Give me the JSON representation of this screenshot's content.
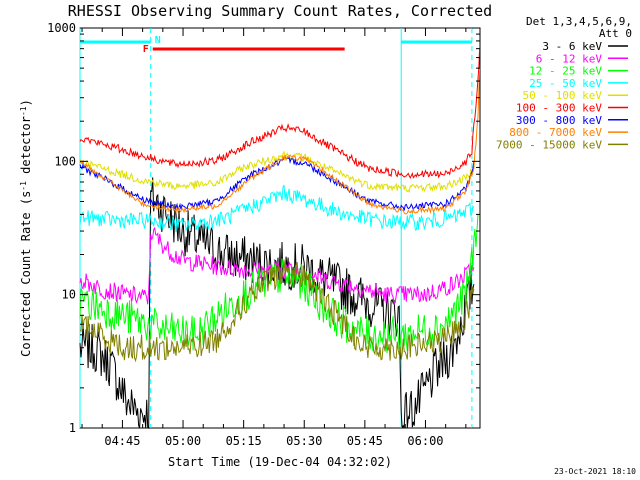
{
  "chart_data": {
    "type": "line",
    "title": "RHESSI Observing Summary Count Rates, Corrected",
    "xlabel": "Start Time (19-Dec-04 04:32:02)",
    "ylabel_main": "Corrected Count Rate (s",
    "ylabel_sup1": "-1",
    "ylabel_mid": " detector",
    "ylabel_sup2": "-1",
    "ylabel_end": ")",
    "y_scale": "log",
    "ylim": [
      1,
      1000
    ],
    "xlim_minutes": [
      4.5,
      103.5
    ],
    "y_ticks": [
      {
        "value": 1,
        "label": "1"
      },
      {
        "value": 10,
        "label": "10"
      },
      {
        "value": 100,
        "label": "100"
      },
      {
        "value": 1000,
        "label": "1000"
      }
    ],
    "x_ticks": [
      {
        "minute": 15,
        "label": "04:45"
      },
      {
        "minute": 30,
        "label": "05:00"
      },
      {
        "minute": 45,
        "label": "05:15"
      },
      {
        "minute": 60,
        "label": "05:30"
      },
      {
        "minute": 75,
        "label": "05:45"
      },
      {
        "minute": 90,
        "label": "06:00"
      }
    ],
    "legend": {
      "placement": "right",
      "header_line1": "Det 1,3,4,5,6,9,",
      "header_line2": "Att 0",
      "entries": [
        {
          "label": "3 - 6 keV",
          "color": "#000000"
        },
        {
          "label": "6 - 12 keV",
          "color": "#ff00ff"
        },
        {
          "label": "12 - 25 keV",
          "color": "#00ff00"
        },
        {
          "label": "25 - 50 keV",
          "color": "#00ffff"
        },
        {
          "label": "50 - 100 keV",
          "color": "#e0e000"
        },
        {
          "label": "100 - 300 keV",
          "color": "#ff0000"
        },
        {
          "label": "300 - 800 keV",
          "color": "#0000ff"
        },
        {
          "label": "800 - 7000 keV",
          "color": "#ff8000"
        },
        {
          "label": "7000 - 15000 keV",
          "color": "#808000"
        }
      ]
    },
    "annotations": {
      "flare_flag_label": "F",
      "flare_flag_color": "#ff0000",
      "flare_minutes": [
        22.5,
        70
      ],
      "night_flag_label": "N",
      "night_flag_color": "#00ffff",
      "night_intervals_minutes": [
        [
          4.5,
          22
        ],
        [
          84,
          101.5
        ]
      ],
      "day_boundaries_solid_minutes": [
        4.5,
        84
      ],
      "day_boundaries_dashed_minutes": [
        22,
        101.5
      ]
    },
    "series": [
      {
        "name": "3 - 6 keV",
        "color": "#000000",
        "noise": 0.18,
        "points": [
          [
            4.5,
            4
          ],
          [
            8,
            4
          ],
          [
            12,
            3
          ],
          [
            16,
            1.6
          ],
          [
            19,
            1.3
          ],
          [
            21.5,
            1.3
          ],
          [
            22,
            55
          ],
          [
            30,
            30
          ],
          [
            40,
            20
          ],
          [
            50,
            17
          ],
          [
            60,
            16
          ],
          [
            70,
            11
          ],
          [
            80,
            7.5
          ],
          [
            83.5,
            7
          ],
          [
            84,
            1.2
          ],
          [
            88,
            1.5
          ],
          [
            92,
            2.5
          ],
          [
            97,
            4
          ],
          [
            101,
            10
          ],
          [
            102,
            12
          ]
        ]
      },
      {
        "name": "6 - 12 keV",
        "color": "#ff00ff",
        "noise": 0.07,
        "points": [
          [
            4.5,
            13
          ],
          [
            10,
            11
          ],
          [
            16,
            10
          ],
          [
            21.5,
            9.5
          ],
          [
            22,
            30
          ],
          [
            26,
            22
          ],
          [
            30,
            18
          ],
          [
            40,
            16
          ],
          [
            50,
            15
          ],
          [
            55,
            15.5
          ],
          [
            60,
            15
          ],
          [
            65,
            13
          ],
          [
            70,
            12
          ],
          [
            80,
            10
          ],
          [
            84,
            10
          ],
          [
            90,
            10
          ],
          [
            97,
            12
          ],
          [
            100,
            14
          ],
          [
            102,
            16
          ]
        ]
      },
      {
        "name": "12 - 25 keV",
        "color": "#00ff00",
        "noise": 0.14,
        "points": [
          [
            4.5,
            9
          ],
          [
            15,
            7
          ],
          [
            25,
            5.5
          ],
          [
            33,
            5
          ],
          [
            40,
            7.5
          ],
          [
            45,
            10
          ],
          [
            50,
            12
          ],
          [
            55,
            14
          ],
          [
            60,
            12
          ],
          [
            65,
            8
          ],
          [
            70,
            6
          ],
          [
            75,
            5
          ],
          [
            85,
            5
          ],
          [
            95,
            6
          ],
          [
            100,
            10
          ],
          [
            102,
            22
          ],
          [
            103,
            40
          ]
        ]
      },
      {
        "name": "25 - 50 keV",
        "color": "#00ffff",
        "noise": 0.06,
        "points": [
          [
            4.5,
            38
          ],
          [
            15,
            36
          ],
          [
            22,
            36
          ],
          [
            30,
            33
          ],
          [
            40,
            37
          ],
          [
            48,
            47
          ],
          [
            55,
            58
          ],
          [
            60,
            52
          ],
          [
            70,
            40
          ],
          [
            80,
            35
          ],
          [
            90,
            35
          ],
          [
            97,
            38
          ],
          [
            100,
            42
          ],
          [
            102,
            45
          ]
        ]
      },
      {
        "name": "50 - 100 keV",
        "color": "#e0e000",
        "noise": 0.03,
        "points": [
          [
            4.5,
            100
          ],
          [
            12,
            85
          ],
          [
            20,
            72
          ],
          [
            28,
            65
          ],
          [
            38,
            68
          ],
          [
            45,
            90
          ],
          [
            55,
            112
          ],
          [
            60,
            107
          ],
          [
            68,
            82
          ],
          [
            76,
            66
          ],
          [
            85,
            63
          ],
          [
            95,
            65
          ],
          [
            100,
            75
          ],
          [
            102,
            90
          ]
        ]
      },
      {
        "name": "100 - 300 keV",
        "color": "#ff0000",
        "noise": 0.03,
        "points": [
          [
            4.5,
            150
          ],
          [
            12,
            130
          ],
          [
            20,
            110
          ],
          [
            28,
            95
          ],
          [
            38,
            100
          ],
          [
            47,
            140
          ],
          [
            55,
            178
          ],
          [
            60,
            168
          ],
          [
            68,
            120
          ],
          [
            76,
            88
          ],
          [
            85,
            80
          ],
          [
            95,
            80
          ],
          [
            100,
            100
          ],
          [
            101.5,
            120
          ],
          [
            102,
            180
          ],
          [
            103,
            400
          ],
          [
            103.4,
            700
          ]
        ]
      },
      {
        "name": "300 - 800 keV",
        "color": "#0000ff",
        "noise": 0.025,
        "points": [
          [
            4.5,
            92
          ],
          [
            12,
            70
          ],
          [
            20,
            52
          ],
          [
            28,
            45
          ],
          [
            38,
            50
          ],
          [
            47,
            80
          ],
          [
            55,
            102
          ],
          [
            60,
            98
          ],
          [
            68,
            70
          ],
          [
            76,
            50
          ],
          [
            85,
            45
          ],
          [
            95,
            48
          ],
          [
            100,
            62
          ],
          [
            101.5,
            80
          ],
          [
            102,
            100
          ]
        ]
      },
      {
        "name": "800 - 7000 keV",
        "color": "#ff8000",
        "noise": 0.02,
        "points": [
          [
            4.5,
            100
          ],
          [
            12,
            70
          ],
          [
            20,
            48
          ],
          [
            28,
            43
          ],
          [
            38,
            46
          ],
          [
            47,
            75
          ],
          [
            55,
            108
          ],
          [
            60,
            105
          ],
          [
            68,
            72
          ],
          [
            76,
            48
          ],
          [
            85,
            42
          ],
          [
            95,
            44
          ],
          [
            100,
            60
          ],
          [
            101.5,
            80
          ],
          [
            102,
            90
          ],
          [
            103,
            220
          ],
          [
            103.4,
            500
          ]
        ]
      },
      {
        "name": "7000 - 15000 keV",
        "color": "#808000",
        "noise": 0.1,
        "points": [
          [
            4.5,
            6
          ],
          [
            10,
            5
          ],
          [
            15,
            4
          ],
          [
            30,
            4
          ],
          [
            38,
            4.5
          ],
          [
            45,
            8.5
          ],
          [
            50,
            12
          ],
          [
            55,
            15
          ],
          [
            60,
            14
          ],
          [
            65,
            9
          ],
          [
            70,
            6
          ],
          [
            75,
            4
          ],
          [
            85,
            4
          ],
          [
            95,
            4.5
          ],
          [
            100,
            7
          ],
          [
            102,
            11
          ]
        ]
      }
    ]
  },
  "footer": {
    "date_stamp": "23-Oct-2021 18:10"
  }
}
